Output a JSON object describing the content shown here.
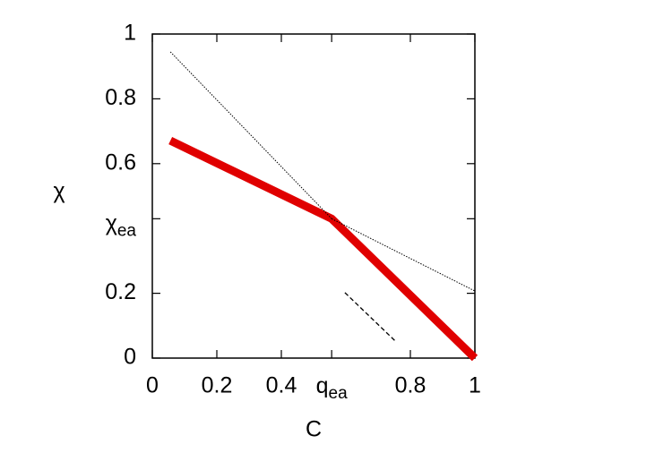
{
  "chart_data": {
    "type": "line",
    "xlabel": "C",
    "ylabel": "χ",
    "xlim": [
      0,
      1
    ],
    "ylim": [
      0,
      1
    ],
    "xticks": [
      0,
      0.2,
      0.4,
      {
        "value": 0.556,
        "label": "q",
        "sub": "ea"
      },
      0.8,
      1
    ],
    "yticks": [
      0,
      0.2,
      {
        "value": 0.43,
        "label": "χ",
        "sub": "ea"
      },
      0.6,
      0.8,
      1
    ],
    "grid": false,
    "series": [
      {
        "color": "#e00000",
        "style": "thick",
        "x": [
          0.056,
          0.556,
          1
        ],
        "values": [
          0.671,
          0.43,
          0
        ]
      },
      {
        "color": "#000000",
        "style": "dotted",
        "x": [
          0.056,
          0.556
        ],
        "values": [
          0.945,
          0.43
        ]
      },
      {
        "color": "#000000",
        "style": "dotted",
        "x": [
          0.556,
          1
        ],
        "values": [
          0.43,
          0.207
        ]
      },
      {
        "color": "#000000",
        "style": "dashed",
        "x": [
          0.597,
          0.756
        ],
        "values": [
          0.202,
          0.05
        ]
      }
    ]
  }
}
